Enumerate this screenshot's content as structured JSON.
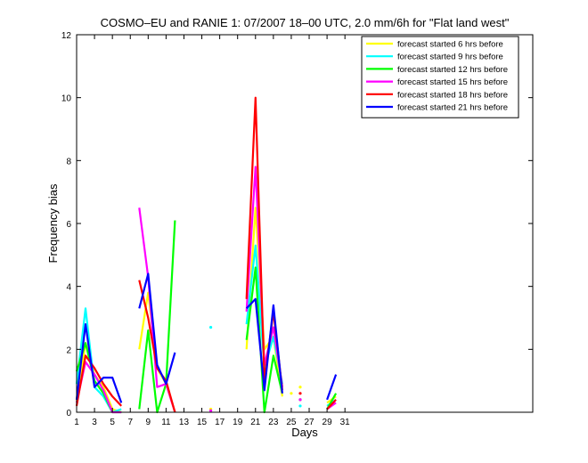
{
  "chart_data": {
    "type": "line",
    "title": "COSMO–EU and RANIE 1: 07/2007 18–00 UTC, 2.0 mm/6h for \"Flat land west\"",
    "xlabel": "Days",
    "ylabel": "Frequency bias",
    "xlim": [
      1,
      52
    ],
    "ylim": [
      0,
      12
    ],
    "xticks": [
      1,
      3,
      5,
      7,
      9,
      11,
      13,
      15,
      17,
      19,
      21,
      23,
      25,
      27,
      29,
      31
    ],
    "yticks": [
      0,
      2,
      4,
      6,
      8,
      10,
      12
    ],
    "grid": false,
    "legend_position": "top-right",
    "series": [
      {
        "name": "forecast started 6 hrs before",
        "color": "#ffff00",
        "segments": [
          [
            [
              1,
              0.3
            ],
            [
              2,
              2.2
            ],
            [
              3,
              1.2
            ],
            [
              4,
              0.8
            ],
            [
              5,
              0.1
            ],
            [
              6,
              0.0
            ]
          ],
          [
            [
              8,
              2.0
            ],
            [
              9,
              3.8
            ],
            [
              10,
              1.4
            ],
            [
              11,
              0.9
            ],
            [
              12,
              0.0
            ]
          ],
          [
            [
              20,
              2.0
            ],
            [
              21,
              6.5
            ],
            [
              22,
              2.0
            ],
            [
              23,
              2.4
            ],
            [
              24,
              0.5
            ]
          ],
          [
            [
              29,
              0.3
            ],
            [
              30,
              0.5
            ]
          ]
        ],
        "points": [
          [
            16,
            0.1
          ],
          [
            25,
            0.6
          ],
          [
            26,
            0.8
          ]
        ]
      },
      {
        "name": "forecast started 9 hrs before",
        "color": "#00ffff",
        "segments": [
          [
            [
              1,
              0.9
            ],
            [
              2,
              3.3
            ],
            [
              3,
              0.8
            ],
            [
              4,
              0.5
            ],
            [
              5,
              0.0
            ],
            [
              6,
              0.1
            ]
          ],
          [
            [
              20,
              2.8
            ],
            [
              21,
              5.3
            ],
            [
              22,
              1.4
            ],
            [
              23,
              2.4
            ],
            [
              24,
              0.9
            ]
          ],
          [
            [
              29,
              0.2
            ],
            [
              30,
              0.4
            ]
          ]
        ],
        "points": [
          [
            16,
            2.7
          ],
          [
            26,
            0.2
          ]
        ]
      },
      {
        "name": "forecast started 12 hrs before",
        "color": "#00ff00",
        "segments": [
          [
            [
              1,
              1.3
            ],
            [
              2,
              2.2
            ],
            [
              3,
              1.0
            ],
            [
              4,
              0.6
            ],
            [
              5,
              0.0
            ],
            [
              6,
              0.0
            ]
          ],
          [
            [
              8,
              0.1
            ],
            [
              9,
              2.6
            ],
            [
              10,
              0.0
            ],
            [
              11,
              0.9
            ],
            [
              12,
              6.1
            ]
          ],
          [
            [
              20,
              2.3
            ],
            [
              21,
              4.6
            ],
            [
              22,
              0.0
            ],
            [
              23,
              1.8
            ],
            [
              24,
              0.6
            ]
          ],
          [
            [
              29,
              0.1
            ],
            [
              30,
              0.6
            ]
          ]
        ],
        "points": [
          [
            26,
            0.4
          ]
        ]
      },
      {
        "name": "forecast started 15 hrs before",
        "color": "#ff00ff",
        "segments": [
          [
            [
              1,
              0.3
            ],
            [
              2,
              1.6
            ],
            [
              3,
              1.2
            ],
            [
              4,
              0.7
            ],
            [
              5,
              0.0
            ],
            [
              6,
              0.0
            ]
          ],
          [
            [
              8,
              6.5
            ],
            [
              9,
              4.3
            ],
            [
              10,
              0.8
            ],
            [
              11,
              0.9
            ],
            [
              12,
              0.0
            ]
          ],
          [
            [
              20,
              3.2
            ],
            [
              21,
              7.8
            ],
            [
              22,
              1.5
            ],
            [
              23,
              2.7
            ],
            [
              24,
              0.8
            ]
          ],
          [
            [
              29,
              0.1
            ],
            [
              30,
              0.3
            ]
          ]
        ],
        "points": [
          [
            16,
            0.05
          ],
          [
            26,
            0.4
          ]
        ]
      },
      {
        "name": "forecast started 18 hrs before",
        "color": "#ff0000",
        "segments": [
          [
            [
              1,
              0.2
            ],
            [
              2,
              1.8
            ],
            [
              3,
              1.4
            ],
            [
              4,
              0.9
            ],
            [
              5,
              0.5
            ],
            [
              6,
              0.2
            ]
          ],
          [
            [
              8,
              4.2
            ],
            [
              9,
              3.0
            ],
            [
              10,
              1.4
            ],
            [
              11,
              1.0
            ],
            [
              12,
              0.0
            ]
          ],
          [
            [
              20,
              3.6
            ],
            [
              21,
              10.0
            ],
            [
              22,
              1.0
            ],
            [
              23,
              3.2
            ],
            [
              24,
              0.7
            ]
          ],
          [
            [
              29,
              0.1
            ],
            [
              30,
              0.4
            ]
          ]
        ],
        "points": [
          [
            26,
            0.6
          ]
        ]
      },
      {
        "name": "forecast started 21 hrs before",
        "color": "#0000ff",
        "segments": [
          [
            [
              1,
              0.4
            ],
            [
              2,
              2.8
            ],
            [
              3,
              0.8
            ],
            [
              4,
              1.1
            ],
            [
              5,
              1.1
            ],
            [
              6,
              0.3
            ]
          ],
          [
            [
              8,
              3.3
            ],
            [
              9,
              4.4
            ],
            [
              10,
              1.5
            ],
            [
              11,
              0.9
            ],
            [
              12,
              1.9
            ]
          ],
          [
            [
              20,
              3.3
            ],
            [
              21,
              3.6
            ],
            [
              22,
              0.7
            ],
            [
              23,
              3.4
            ],
            [
              24,
              0.6
            ]
          ],
          [
            [
              29,
              0.4
            ],
            [
              30,
              1.2
            ]
          ]
        ],
        "points": []
      }
    ]
  }
}
